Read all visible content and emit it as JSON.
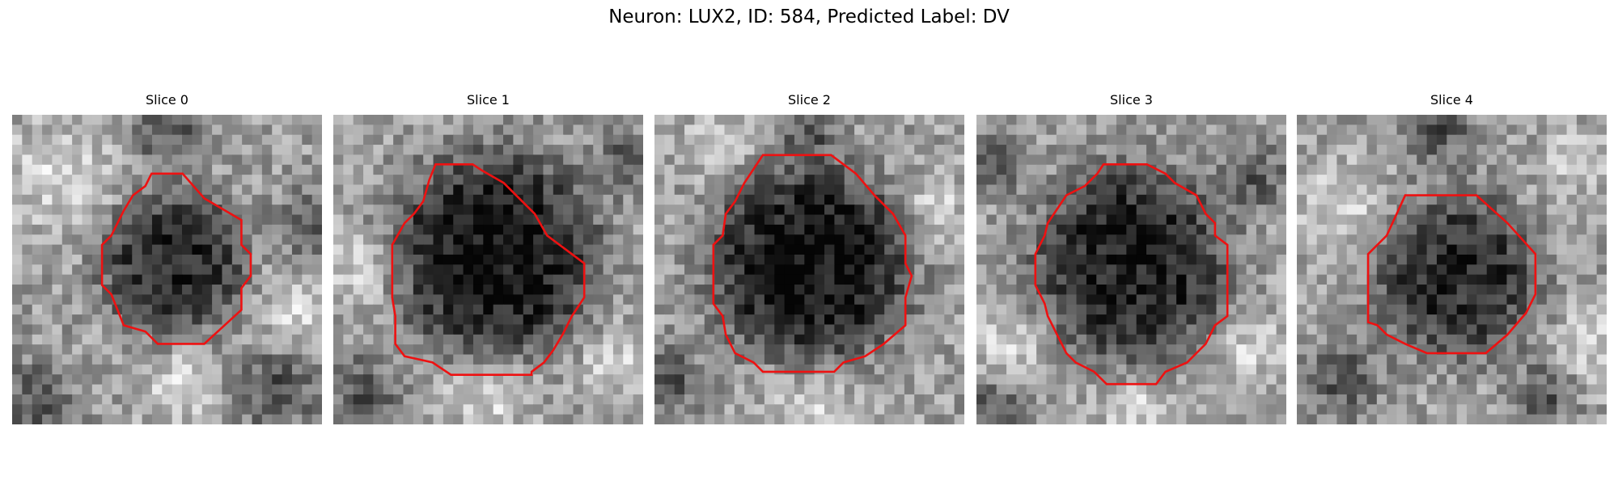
{
  "figure": {
    "title": "Neuron: LUX2, ID: 584, Predicted Label: DV",
    "roi_color": "#ee1111",
    "colormap": "gray",
    "panels": [
      {
        "title": "Slice 0",
        "seed": 11,
        "dark_center": [
          0.52,
          0.48
        ],
        "dark_radius": 0.24,
        "dark_strength": 0.45,
        "bright_spots": [
          [
            0.15,
            0.2,
            0.18
          ],
          [
            0.9,
            0.65,
            0.12
          ],
          [
            0.55,
            0.88,
            0.12
          ]
        ],
        "dark_spots": [
          [
            0.08,
            0.92,
            0.12
          ],
          [
            0.85,
            0.88,
            0.14
          ],
          [
            0.5,
            0.05,
            0.12
          ],
          [
            0.95,
            0.35,
            0.1
          ]
        ],
        "roi": [
          [
            0.48,
            0.19
          ],
          [
            0.55,
            0.19
          ],
          [
            0.62,
            0.27
          ],
          [
            0.74,
            0.34
          ],
          [
            0.74,
            0.42
          ],
          [
            0.77,
            0.45
          ],
          [
            0.77,
            0.52
          ],
          [
            0.74,
            0.56
          ],
          [
            0.74,
            0.63
          ],
          [
            0.62,
            0.74
          ],
          [
            0.47,
            0.74
          ],
          [
            0.43,
            0.7
          ],
          [
            0.36,
            0.68
          ],
          [
            0.32,
            0.58
          ],
          [
            0.29,
            0.55
          ],
          [
            0.29,
            0.42
          ],
          [
            0.32,
            0.39
          ],
          [
            0.36,
            0.31
          ],
          [
            0.39,
            0.26
          ],
          [
            0.43,
            0.23
          ],
          [
            0.45,
            0.19
          ]
        ]
      },
      {
        "title": "Slice 1",
        "seed": 23,
        "dark_center": [
          0.52,
          0.45
        ],
        "dark_radius": 0.34,
        "dark_strength": 0.55,
        "bright_spots": [
          [
            0.1,
            0.5,
            0.12
          ],
          [
            0.5,
            0.9,
            0.14
          ],
          [
            0.9,
            0.8,
            0.1
          ]
        ],
        "dark_spots": [
          [
            0.1,
            0.9,
            0.12
          ],
          [
            0.95,
            0.15,
            0.1
          ]
        ],
        "roi": [
          [
            0.33,
            0.16
          ],
          [
            0.36,
            0.16
          ],
          [
            0.39,
            0.16
          ],
          [
            0.45,
            0.16
          ],
          [
            0.48,
            0.18
          ],
          [
            0.55,
            0.22
          ],
          [
            0.65,
            0.32
          ],
          [
            0.69,
            0.39
          ],
          [
            0.77,
            0.45
          ],
          [
            0.81,
            0.48
          ],
          [
            0.81,
            0.59
          ],
          [
            0.77,
            0.65
          ],
          [
            0.74,
            0.71
          ],
          [
            0.71,
            0.76
          ],
          [
            0.68,
            0.8
          ],
          [
            0.64,
            0.83
          ],
          [
            0.64,
            0.84
          ],
          [
            0.38,
            0.84
          ],
          [
            0.32,
            0.8
          ],
          [
            0.23,
            0.78
          ],
          [
            0.2,
            0.74
          ],
          [
            0.2,
            0.65
          ],
          [
            0.19,
            0.59
          ],
          [
            0.19,
            0.42
          ],
          [
            0.23,
            0.35
          ],
          [
            0.26,
            0.32
          ],
          [
            0.29,
            0.28
          ],
          [
            0.31,
            0.21
          ]
        ]
      },
      {
        "title": "Slice 2",
        "seed": 37,
        "dark_center": [
          0.5,
          0.48
        ],
        "dark_radius": 0.33,
        "dark_strength": 0.55,
        "bright_spots": [
          [
            0.5,
            0.95,
            0.14
          ],
          [
            0.2,
            0.1,
            0.1
          ],
          [
            0.9,
            0.3,
            0.1
          ]
        ],
        "dark_spots": [
          [
            0.05,
            0.85,
            0.1
          ],
          [
            0.5,
            0.05,
            0.08
          ]
        ],
        "roi": [
          [
            0.35,
            0.13
          ],
          [
            0.36,
            0.13
          ],
          [
            0.57,
            0.13
          ],
          [
            0.61,
            0.16
          ],
          [
            0.65,
            0.19
          ],
          [
            0.71,
            0.26
          ],
          [
            0.77,
            0.32
          ],
          [
            0.81,
            0.39
          ],
          [
            0.81,
            0.48
          ],
          [
            0.83,
            0.52
          ],
          [
            0.81,
            0.59
          ],
          [
            0.81,
            0.68
          ],
          [
            0.74,
            0.74
          ],
          [
            0.68,
            0.78
          ],
          [
            0.61,
            0.8
          ],
          [
            0.58,
            0.83
          ],
          [
            0.35,
            0.83
          ],
          [
            0.32,
            0.8
          ],
          [
            0.26,
            0.77
          ],
          [
            0.23,
            0.71
          ],
          [
            0.22,
            0.65
          ],
          [
            0.19,
            0.61
          ],
          [
            0.19,
            0.42
          ],
          [
            0.22,
            0.39
          ],
          [
            0.23,
            0.32
          ],
          [
            0.26,
            0.28
          ],
          [
            0.29,
            0.22
          ]
        ]
      },
      {
        "title": "Slice 3",
        "seed": 53,
        "dark_center": [
          0.5,
          0.48
        ],
        "dark_radius": 0.32,
        "dark_strength": 0.5,
        "bright_spots": [
          [
            0.1,
            0.75,
            0.12
          ],
          [
            0.9,
            0.75,
            0.1
          ],
          [
            0.5,
            0.95,
            0.1
          ]
        ],
        "dark_spots": [
          [
            0.05,
            0.15,
            0.1
          ],
          [
            0.9,
            0.2,
            0.1
          ],
          [
            0.05,
            0.95,
            0.1
          ]
        ],
        "roi": [
          [
            0.41,
            0.16
          ],
          [
            0.48,
            0.16
          ],
          [
            0.55,
            0.16
          ],
          [
            0.61,
            0.19
          ],
          [
            0.64,
            0.22
          ],
          [
            0.71,
            0.26
          ],
          [
            0.74,
            0.32
          ],
          [
            0.77,
            0.35
          ],
          [
            0.77,
            0.39
          ],
          [
            0.81,
            0.42
          ],
          [
            0.81,
            0.65
          ],
          [
            0.77,
            0.68
          ],
          [
            0.74,
            0.74
          ],
          [
            0.68,
            0.8
          ],
          [
            0.61,
            0.83
          ],
          [
            0.58,
            0.87
          ],
          [
            0.52,
            0.87
          ],
          [
            0.42,
            0.87
          ],
          [
            0.38,
            0.83
          ],
          [
            0.32,
            0.8
          ],
          [
            0.29,
            0.77
          ],
          [
            0.26,
            0.71
          ],
          [
            0.23,
            0.65
          ],
          [
            0.22,
            0.61
          ],
          [
            0.19,
            0.55
          ],
          [
            0.19,
            0.45
          ],
          [
            0.22,
            0.39
          ],
          [
            0.23,
            0.35
          ],
          [
            0.29,
            0.26
          ],
          [
            0.35,
            0.23
          ],
          [
            0.39,
            0.19
          ]
        ]
      },
      {
        "title": "Slice 4",
        "seed": 71,
        "dark_center": [
          0.52,
          0.52
        ],
        "dark_radius": 0.27,
        "dark_strength": 0.45,
        "bright_spots": [
          [
            0.15,
            0.3,
            0.14
          ],
          [
            0.9,
            0.15,
            0.1
          ],
          [
            0.95,
            0.75,
            0.12
          ]
        ],
        "dark_spots": [
          [
            0.15,
            0.85,
            0.12
          ],
          [
            0.45,
            0.05,
            0.12
          ],
          [
            0.8,
            0.9,
            0.1
          ]
        ],
        "roi": [
          [
            0.35,
            0.26
          ],
          [
            0.42,
            0.26
          ],
          [
            0.58,
            0.26
          ],
          [
            0.68,
            0.35
          ],
          [
            0.77,
            0.45
          ],
          [
            0.77,
            0.58
          ],
          [
            0.74,
            0.64
          ],
          [
            0.68,
            0.71
          ],
          [
            0.61,
            0.77
          ],
          [
            0.58,
            0.77
          ],
          [
            0.45,
            0.77
          ],
          [
            0.42,
            0.77
          ],
          [
            0.35,
            0.74
          ],
          [
            0.29,
            0.71
          ],
          [
            0.26,
            0.68
          ],
          [
            0.23,
            0.67
          ],
          [
            0.23,
            0.45
          ],
          [
            0.29,
            0.39
          ]
        ]
      }
    ]
  }
}
